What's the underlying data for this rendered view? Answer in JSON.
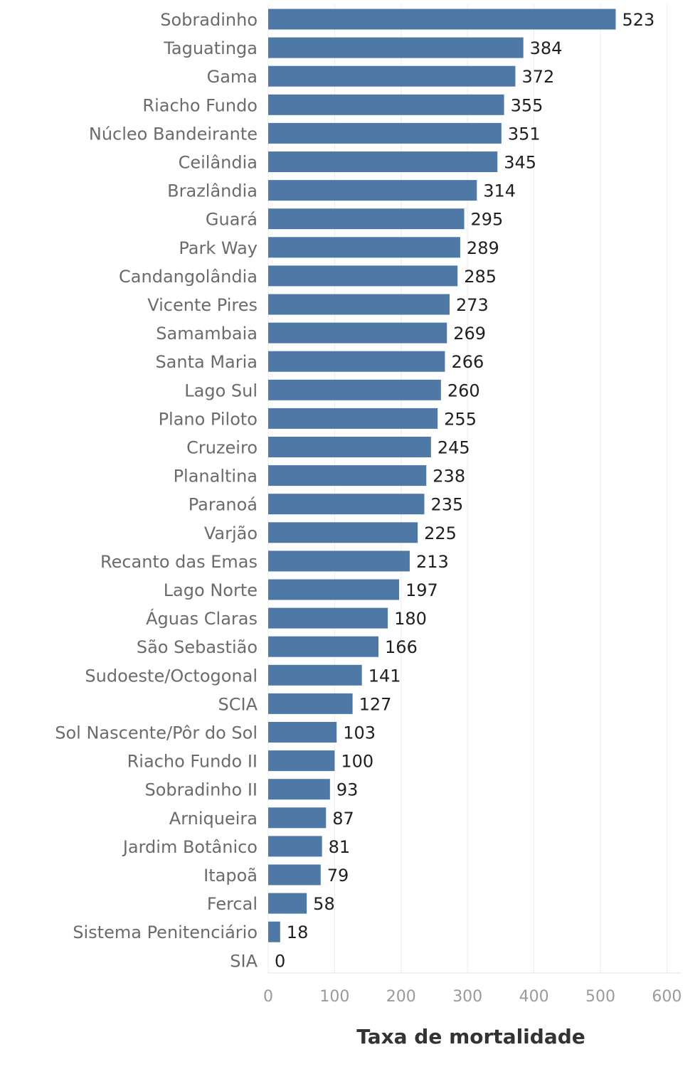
{
  "chart_data": {
    "type": "bar",
    "orientation": "horizontal",
    "title": "",
    "xlabel": "Taxa de mortalidade",
    "ylabel": "",
    "xlim": [
      0,
      600
    ],
    "xticks": [
      0,
      100,
      200,
      300,
      400,
      500,
      600
    ],
    "grid": true,
    "bar_color": "#4e79a7",
    "categories": [
      "Sobradinho",
      "Taguatinga",
      "Gama",
      "Riacho Fundo",
      "Núcleo Bandeirante",
      "Ceilândia",
      "Brazlândia",
      "Guará",
      "Park Way",
      "Candangolândia",
      "Vicente Pires",
      "Samambaia",
      "Santa Maria",
      "Lago Sul",
      "Plano Piloto",
      "Cruzeiro",
      "Planaltina",
      "Paranoá",
      "Varjão",
      "Recanto das Emas",
      "Lago Norte",
      "Águas Claras",
      "São Sebastião",
      "Sudoeste/Octogonal",
      "SCIA",
      "Sol Nascente/Pôr do Sol",
      "Riacho Fundo II",
      "Sobradinho II",
      "Arniqueira",
      "Jardim Botânico",
      "Itapoã",
      "Fercal",
      "Sistema Penitenciário",
      "SIA"
    ],
    "values": [
      523,
      384,
      372,
      355,
      351,
      345,
      314,
      295,
      289,
      285,
      273,
      269,
      266,
      260,
      255,
      245,
      238,
      235,
      225,
      213,
      197,
      180,
      166,
      141,
      127,
      103,
      100,
      93,
      87,
      81,
      79,
      58,
      18,
      0
    ]
  }
}
